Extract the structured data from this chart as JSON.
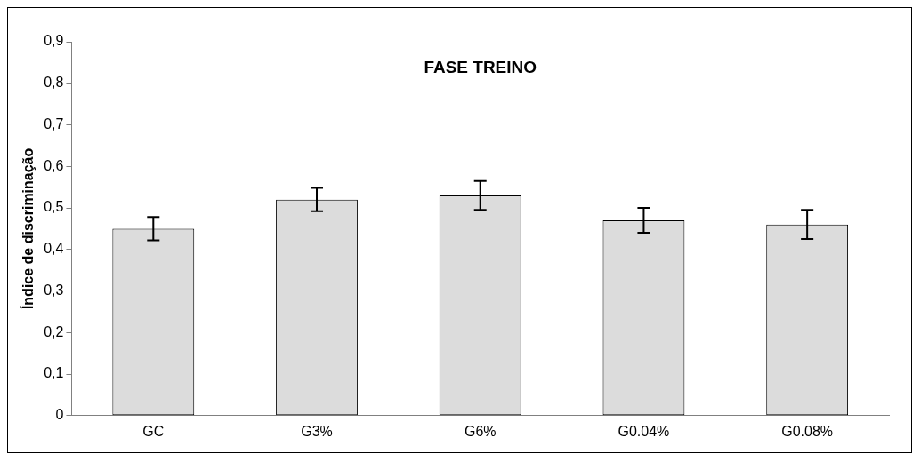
{
  "chart_data": {
    "type": "bar",
    "title": "FASE TREINO",
    "ylabel": "Índice de discriminação",
    "categories": [
      "GC",
      "G3%",
      "G6%",
      "G0.04%",
      "G0.08%"
    ],
    "values": [
      0.45,
      0.52,
      0.53,
      0.47,
      0.46
    ],
    "errors": [
      0.028,
      0.028,
      0.035,
      0.03,
      0.035
    ],
    "color": "#dcdcdc",
    "ylim": [
      0,
      0.9
    ],
    "yticks": [
      {
        "value": 0,
        "label": "0"
      },
      {
        "value": 0.1,
        "label": "0,1"
      },
      {
        "value": 0.2,
        "label": "0,2"
      },
      {
        "value": 0.3,
        "label": "0,3"
      },
      {
        "value": 0.4,
        "label": "0,4"
      },
      {
        "value": 0.5,
        "label": "0,5"
      },
      {
        "value": 0.6,
        "label": "0,6"
      },
      {
        "value": 0.7,
        "label": "0,7"
      },
      {
        "value": 0.8,
        "label": "0,8"
      },
      {
        "value": 0.9,
        "label": "0,9"
      }
    ],
    "grid": false,
    "legend": false
  }
}
